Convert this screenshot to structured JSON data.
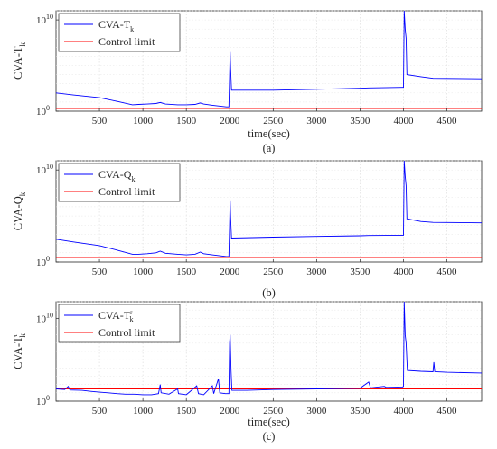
{
  "figure": {
    "panels": 3
  },
  "chart_data": [
    {
      "type": "line",
      "caption": "(a)",
      "xlabel": "time(sec)",
      "ylabel": {
        "main": "CVA-T",
        "sub": "k",
        "sup": ""
      },
      "xlim": [
        0,
        4900
      ],
      "ylim": [
        1,
        100000000000
      ],
      "yscale": "log",
      "grid": true,
      "legend_position": "top-left",
      "xticks": [
        500,
        1000,
        1500,
        2000,
        2500,
        3000,
        3500,
        4000,
        4500
      ],
      "yticks": [
        {
          "value": 1,
          "label": "10",
          "exp": "0"
        },
        {
          "value": 10000000000,
          "label": "10",
          "exp": "10"
        }
      ],
      "series": [
        {
          "name": {
            "main": "CVA-T",
            "sub": "k",
            "sup": ""
          },
          "color": "#0000ff",
          "points": [
            [
              0,
              100
            ],
            [
              200,
              60
            ],
            [
              500,
              30
            ],
            [
              700,
              12
            ],
            [
              880,
              5
            ],
            [
              950,
              5.5
            ],
            [
              1050,
              6
            ],
            [
              1150,
              7
            ],
            [
              1200,
              9
            ],
            [
              1260,
              6
            ],
            [
              1400,
              5
            ],
            [
              1500,
              5
            ],
            [
              1600,
              5.5
            ],
            [
              1660,
              8
            ],
            [
              1700,
              6
            ],
            [
              1800,
              4.5
            ],
            [
              1960,
              3
            ],
            [
              1990,
              3
            ],
            [
              2005,
              3000000
            ],
            [
              2010,
              50000
            ],
            [
              2020,
              200
            ],
            [
              2500,
              200
            ],
            [
              3000,
              250
            ],
            [
              3500,
              320
            ],
            [
              3600,
              350
            ],
            [
              3990,
              400
            ],
            [
              4000,
              400
            ],
            [
              4008,
              100000000000
            ],
            [
              4020,
              1000000000
            ],
            [
              4030,
              100000000
            ],
            [
              4040,
              10000
            ],
            [
              4200,
              6000
            ],
            [
              4340,
              4000
            ],
            [
              4900,
              3500
            ]
          ]
        },
        {
          "name": {
            "main": "Control limit",
            "sub": "",
            "sup": ""
          },
          "color": "#ff0000",
          "points": [
            [
              0,
              2
            ],
            [
              4900,
              2
            ]
          ]
        }
      ]
    },
    {
      "type": "line",
      "caption": "(b)",
      "xlabel": "",
      "ylabel": {
        "main": "CVA-Q",
        "sub": "k",
        "sup": ""
      },
      "xlim": [
        0,
        4900
      ],
      "ylim": [
        1,
        100000000000
      ],
      "yscale": "log",
      "grid": true,
      "legend_position": "top-left",
      "xticks": [
        500,
        1000,
        1500,
        2000,
        2500,
        3000,
        3500,
        4000,
        4500
      ],
      "yticks": [
        {
          "value": 1,
          "label": "10",
          "exp": "0"
        },
        {
          "value": 10000000000,
          "label": "10",
          "exp": "10"
        }
      ],
      "series": [
        {
          "name": {
            "main": "CVA-Q",
            "sub": "k",
            "sup": ""
          },
          "color": "#0000ff",
          "points": [
            [
              0,
              300
            ],
            [
              200,
              150
            ],
            [
              500,
              60
            ],
            [
              700,
              20
            ],
            [
              880,
              7
            ],
            [
              950,
              7
            ],
            [
              1050,
              8
            ],
            [
              1150,
              10
            ],
            [
              1200,
              15
            ],
            [
              1260,
              9
            ],
            [
              1400,
              7
            ],
            [
              1500,
              6
            ],
            [
              1600,
              7
            ],
            [
              1660,
              12
            ],
            [
              1700,
              8
            ],
            [
              1800,
              6
            ],
            [
              1960,
              4
            ],
            [
              1990,
              4
            ],
            [
              2005,
              5000000
            ],
            [
              2010,
              80000
            ],
            [
              2020,
              400
            ],
            [
              2500,
              500
            ],
            [
              3000,
              600
            ],
            [
              3500,
              700
            ],
            [
              3600,
              750
            ],
            [
              3990,
              800
            ],
            [
              4000,
              800
            ],
            [
              4008,
              100000000000
            ],
            [
              4020,
              2000000000
            ],
            [
              4030,
              200000000
            ],
            [
              4040,
              50000
            ],
            [
              4200,
              25000
            ],
            [
              4340,
              20000
            ],
            [
              4900,
              18000
            ]
          ]
        },
        {
          "name": {
            "main": "Control limit",
            "sub": "",
            "sup": ""
          },
          "color": "#ff0000",
          "points": [
            [
              0,
              3
            ],
            [
              4900,
              3
            ]
          ]
        }
      ]
    },
    {
      "type": "line",
      "caption": "(c)",
      "xlabel": "time(sec)",
      "ylabel": {
        "main": "CVA-T",
        "sub": "k",
        "sup": "r"
      },
      "xlim": [
        0,
        4900
      ],
      "ylim": [
        1,
        1000000000000
      ],
      "yscale": "log",
      "grid": true,
      "legend_position": "top-left",
      "xticks": [
        500,
        1000,
        1500,
        2000,
        2500,
        3000,
        3500,
        4000,
        4500
      ],
      "yticks": [
        {
          "value": 1,
          "label": "10",
          "exp": "0"
        },
        {
          "value": 10000000000,
          "label": "10",
          "exp": "10"
        }
      ],
      "series": [
        {
          "name": {
            "main": "CVA-T",
            "sub": "k",
            "sup": "r"
          },
          "color": "#0000ff",
          "points": [
            [
              0,
              30
            ],
            [
              100,
              25
            ],
            [
              140,
              60
            ],
            [
              160,
              22
            ],
            [
              300,
              20
            ],
            [
              400,
              15
            ],
            [
              500,
              12
            ],
            [
              600,
              10
            ],
            [
              700,
              8
            ],
            [
              800,
              7
            ],
            [
              900,
              7
            ],
            [
              1000,
              6
            ],
            [
              1100,
              6
            ],
            [
              1180,
              8
            ],
            [
              1200,
              100
            ],
            [
              1210,
              10
            ],
            [
              1300,
              7
            ],
            [
              1400,
              30
            ],
            [
              1410,
              8
            ],
            [
              1500,
              6
            ],
            [
              1620,
              70
            ],
            [
              1640,
              8
            ],
            [
              1700,
              6
            ],
            [
              1800,
              70
            ],
            [
              1815,
              8
            ],
            [
              1870,
              500
            ],
            [
              1885,
              10
            ],
            [
              1950,
              8
            ],
            [
              1990,
              8
            ],
            [
              1998,
              10000000
            ],
            [
              2005,
              100000000
            ],
            [
              2015,
              5000
            ],
            [
              2025,
              20
            ],
            [
              2200,
              20
            ],
            [
              2500,
              25
            ],
            [
              3000,
              30
            ],
            [
              3500,
              35
            ],
            [
              3600,
              200
            ],
            [
              3620,
              40
            ],
            [
              3780,
              60
            ],
            [
              3800,
              45
            ],
            [
              3990,
              50
            ],
            [
              4000,
              60
            ],
            [
              4008,
              1000000000000
            ],
            [
              4020,
              100000000
            ],
            [
              4030,
              10000000
            ],
            [
              4045,
              5000
            ],
            [
              4200,
              4000
            ],
            [
              4340,
              3500
            ],
            [
              4350,
              50000
            ],
            [
              4360,
              3500
            ],
            [
              4500,
              3000
            ],
            [
              4900,
              2500
            ]
          ]
        },
        {
          "name": {
            "main": "Control limit",
            "sub": "",
            "sup": ""
          },
          "color": "#ff0000",
          "points": [
            [
              0,
              30
            ],
            [
              4900,
              30
            ]
          ]
        }
      ]
    }
  ]
}
